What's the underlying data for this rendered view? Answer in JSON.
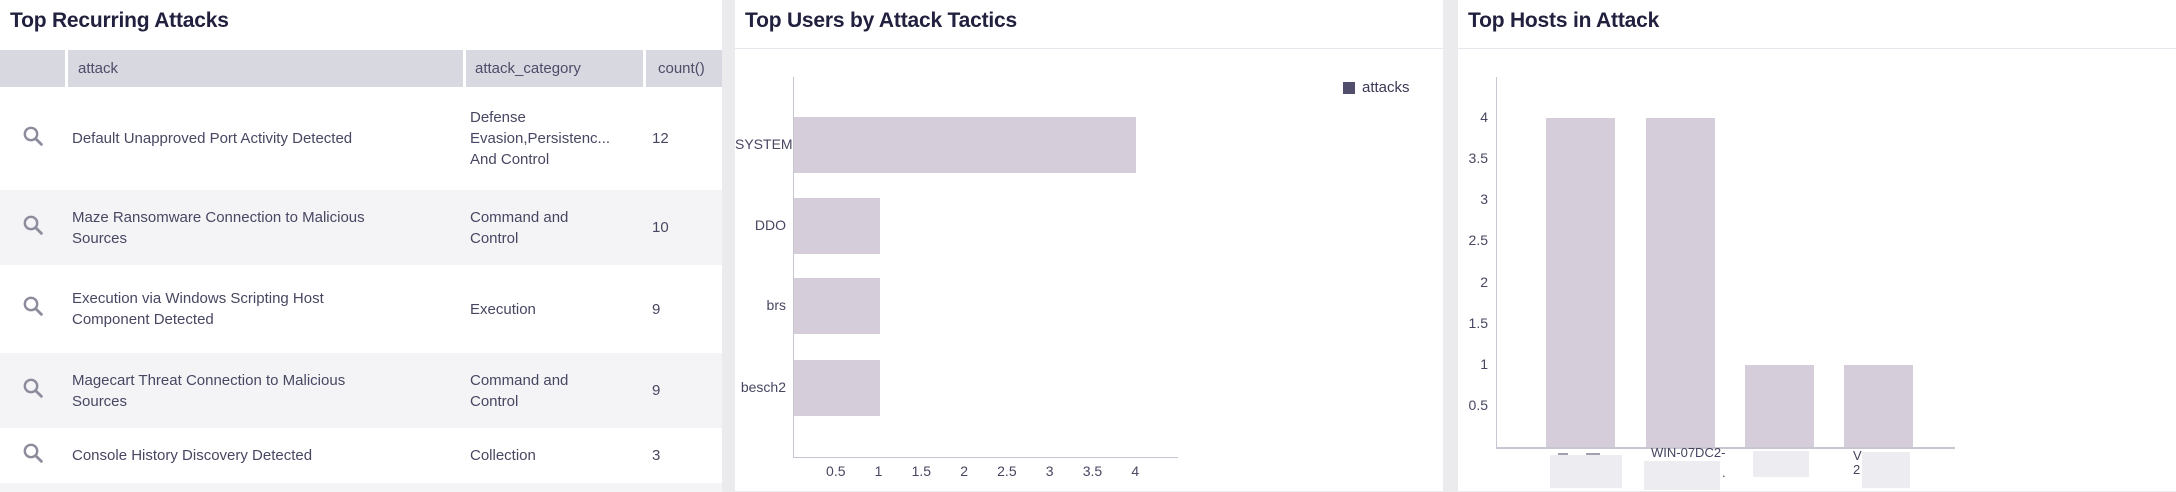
{
  "colors": {
    "bar_fill": "#d6cdda",
    "legend_swatch": "#504e6a",
    "table_header_bg": "#d8d8e1",
    "alt_row_bg": "#f4f4f7",
    "page_bg": "#ebebee"
  },
  "panels": {
    "recurring_attacks": {
      "title": "Top Recurring Attacks",
      "table": {
        "columns": [
          "attack",
          "attack_category",
          "count()"
        ],
        "rows": [
          {
            "attack": "Default Unapproved Port Activity Detected",
            "attack_category": "Defense Evasion,Persistenc... And Control",
            "count": "12"
          },
          {
            "attack": "Maze Ransomware Connection to Malicious Sources",
            "attack_category": "Command and Control",
            "count": "10"
          },
          {
            "attack": "Execution via Windows Scripting Host Component Detected",
            "attack_category": "Execution",
            "count": "9"
          },
          {
            "attack": "Magecart Threat Connection to Malicious Sources",
            "attack_category": "Command and Control",
            "count": "9"
          },
          {
            "attack": "Console History Discovery Detected",
            "attack_category": "Collection",
            "count": "3"
          }
        ]
      }
    },
    "users_by_tactics": {
      "title": "Top Users by Attack Tactics"
    },
    "hosts_in_attack": {
      "title": "Top Hosts in Attack"
    }
  },
  "chart_data": [
    {
      "panel": "users_by_tactics",
      "type": "bar",
      "orientation": "horizontal",
      "title": "Top Users by Attack Tactics",
      "categories": [
        "SYSTEM",
        "DDO",
        "brs",
        "besch2"
      ],
      "series": [
        {
          "name": "attacks",
          "values": [
            4,
            1,
            1,
            1
          ]
        }
      ],
      "xlabel": "",
      "ylabel": "",
      "xlim": [
        0,
        4.5
      ],
      "x_ticks": [
        0.5,
        1,
        1.5,
        2,
        2.5,
        3,
        3.5,
        4
      ],
      "grid": false,
      "legend": {
        "label": "attacks",
        "position": "top-right"
      }
    },
    {
      "panel": "hosts_in_attack",
      "type": "bar",
      "orientation": "vertical",
      "title": "Top Hosts in Attack",
      "categories": [
        {
          "line1": "",
          "line2": "",
          "redacted": true
        },
        {
          "line1": "WIN-07DC2-",
          "line2": ".",
          "redacted": true
        },
        {
          "line1": "",
          "line2": "",
          "redacted": true
        },
        {
          "line1": "V",
          "line2": "2",
          "redacted": true
        }
      ],
      "series": [
        {
          "name": "attacks",
          "values": [
            4,
            4,
            1,
            1
          ]
        }
      ],
      "xlabel": "",
      "ylabel": "",
      "ylim": [
        0,
        4.5
      ],
      "y_ticks": [
        0.5,
        1,
        1.5,
        2,
        2.5,
        3,
        3.5,
        4
      ],
      "grid": false,
      "legend": null
    }
  ]
}
